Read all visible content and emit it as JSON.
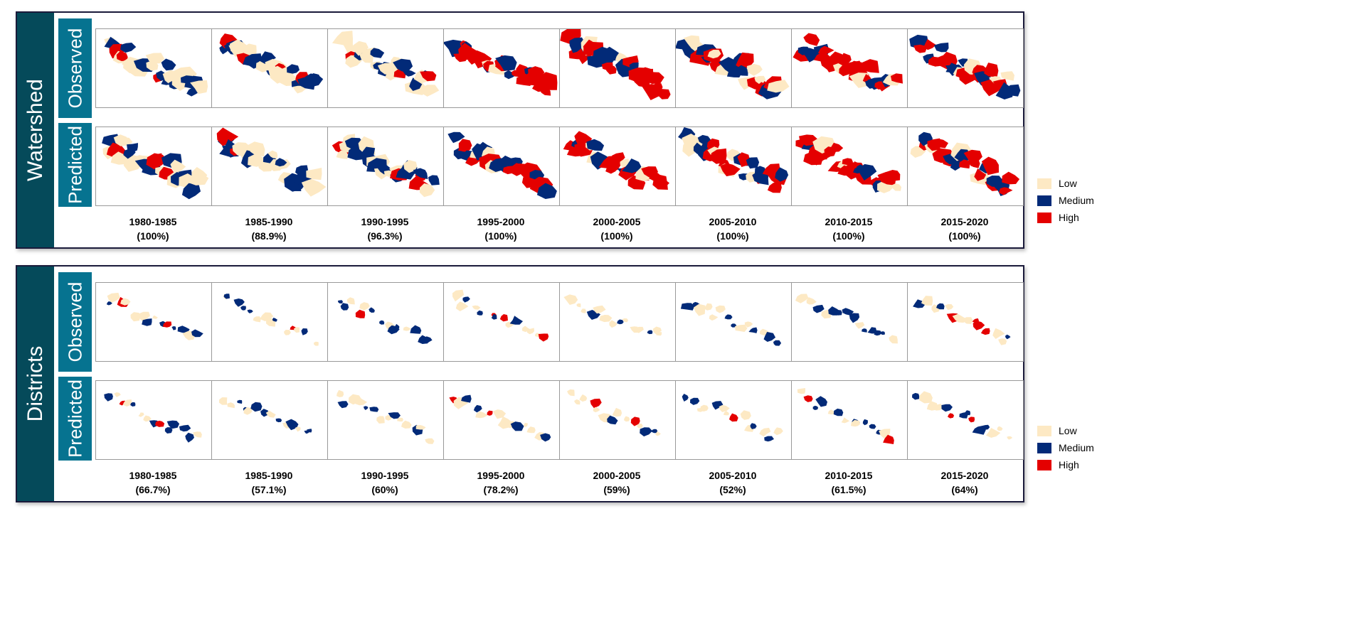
{
  "colors": {
    "Low": "#fde9c4",
    "Medium": "#022a78",
    "High": "#e40000"
  },
  "legend": [
    "Low",
    "Medium",
    "High"
  ],
  "row_labels": [
    "Observed",
    "Predicted"
  ],
  "panels": [
    {
      "title": "Watershed",
      "periods": [
        {
          "period": "1980-1985",
          "accuracy": "(100%)"
        },
        {
          "period": "1985-1990",
          "accuracy": "(88.9%)"
        },
        {
          "period": "1990-1995",
          "accuracy": "(96.3%)"
        },
        {
          "period": "1995-2000",
          "accuracy": "(100%)"
        },
        {
          "period": "2000-2005",
          "accuracy": "(100%)"
        },
        {
          "period": "2005-2010",
          "accuracy": "(100%)"
        },
        {
          "period": "2010-2015",
          "accuracy": "(100%)"
        },
        {
          "period": "2015-2020",
          "accuracy": "(100%)"
        }
      ]
    },
    {
      "title": "Districts",
      "periods": [
        {
          "period": "1980-1985",
          "accuracy": "(66.7%)"
        },
        {
          "period": "1985-1990",
          "accuracy": "(57.1%)"
        },
        {
          "period": "1990-1995",
          "accuracy": "(60%)"
        },
        {
          "period": "1995-2000",
          "accuracy": "(78.2%)"
        },
        {
          "period": "2000-2005",
          "accuracy": "(59%)"
        },
        {
          "period": "2005-2010",
          "accuracy": "(52%)"
        },
        {
          "period": "2010-2015",
          "accuracy": "(61.5%)"
        },
        {
          "period": "2015-2020",
          "accuracy": "(64%)"
        }
      ]
    }
  ]
}
